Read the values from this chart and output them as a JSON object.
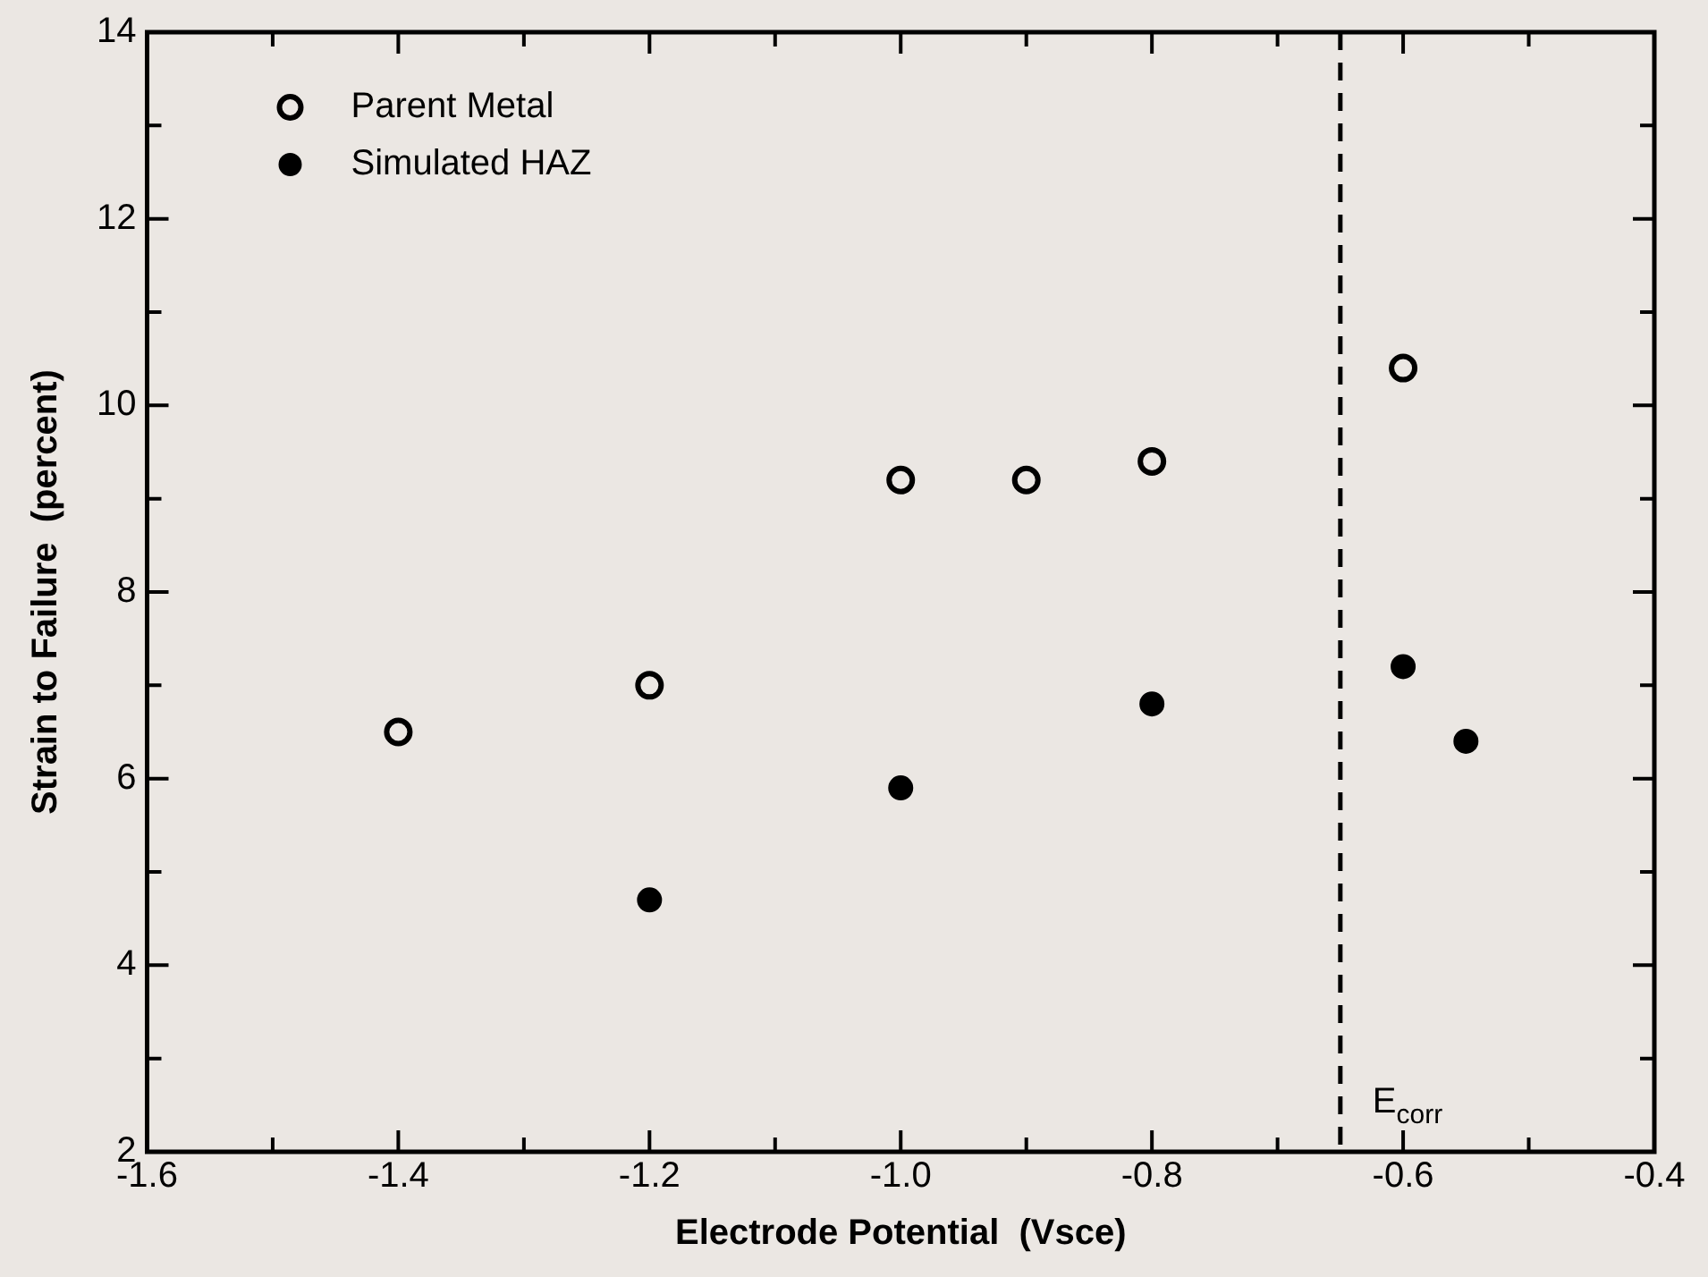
{
  "chart_data": {
    "type": "scatter",
    "xlabel": "Electrode Potential  (Vsce)",
    "ylabel": "Strain to Failure  (percent)",
    "xlim": [
      -1.6,
      -0.4
    ],
    "ylim": [
      2,
      14
    ],
    "xticks": [
      -1.6,
      {
        "value": -1.5,
        "label": null
      },
      -1.4,
      {
        "value": -1.3,
        "label": null
      },
      -1.2,
      {
        "value": -1.1,
        "label": null
      },
      {
        "value": -1.0,
        "label": "-1.0"
      },
      {
        "value": -0.9,
        "label": null
      },
      -0.8,
      {
        "value": -0.7,
        "label": null
      },
      -0.6,
      {
        "value": -0.5,
        "label": null
      },
      -0.4
    ],
    "yticks": [
      2,
      {
        "value": 3,
        "label": null
      },
      4,
      {
        "value": 5,
        "label": null
      },
      6,
      {
        "value": 7,
        "label": null
      },
      8,
      {
        "value": 9,
        "label": null
      },
      10,
      {
        "value": 11,
        "label": null
      },
      12,
      {
        "value": 13,
        "label": null
      },
      14
    ],
    "series": [
      {
        "name": "Parent Metal",
        "color": "#000000",
        "x": [
          -1.4,
          -1.2,
          -1.0,
          -0.9,
          -0.8,
          -0.6
        ],
        "values": [
          6.5,
          7.0,
          9.2,
          9.2,
          9.4,
          10.4
        ]
      },
      {
        "name": "Simulated HAZ",
        "color": "#000000",
        "x": [
          -1.2,
          -1.0,
          -0.8,
          -0.6,
          -0.55
        ],
        "values": [
          4.7,
          5.9,
          6.8,
          7.2,
          6.4
        ]
      }
    ],
    "ref_lines": [
      {
        "axis": "x",
        "value": -0.65,
        "label": "E$_{corr}$",
        "line_style": "dashed",
        "color": "#000000"
      }
    ],
    "marker": "circle",
    "legend": "top left",
    "grid": false
  }
}
